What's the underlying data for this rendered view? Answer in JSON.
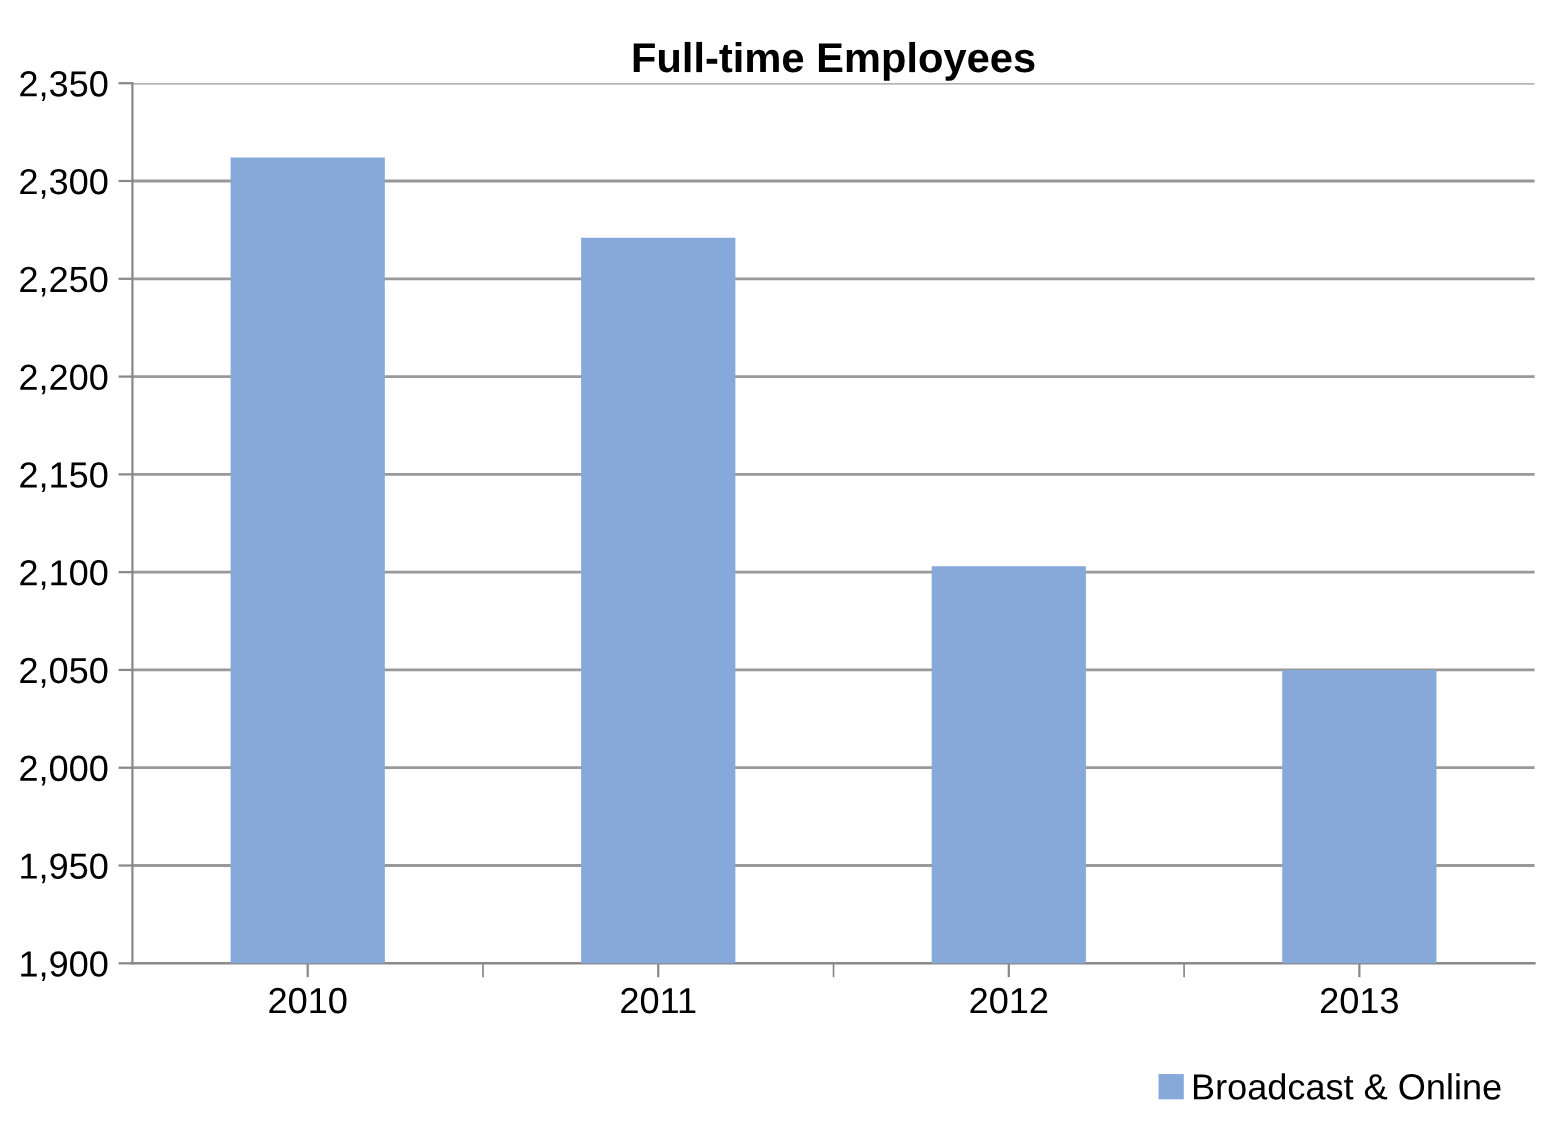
{
  "chart_data": {
    "type": "bar",
    "title": "Full-time Employees",
    "categories": [
      "2010",
      "2011",
      "2012",
      "2013"
    ],
    "series": [
      {
        "name": "Broadcast & Online",
        "color": "#86a9da",
        "values": [
          2312,
          2271,
          2103,
          2050
        ]
      }
    ],
    "ylim": [
      1900,
      2350
    ],
    "yticks": [
      {
        "value": 1900,
        "label": "1,900"
      },
      {
        "value": 1950,
        "label": "1,950"
      },
      {
        "value": 2000,
        "label": "2,000"
      },
      {
        "value": 2050,
        "label": "2,050"
      },
      {
        "value": 2100,
        "label": "2,100"
      },
      {
        "value": 2150,
        "label": "2,150"
      },
      {
        "value": 2200,
        "label": "2,200"
      },
      {
        "value": 2250,
        "label": "2,250"
      },
      {
        "value": 2300,
        "label": "2,300"
      },
      {
        "value": 2350,
        "label": "2,350"
      }
    ],
    "grid": "y",
    "legend": "bottom right"
  }
}
